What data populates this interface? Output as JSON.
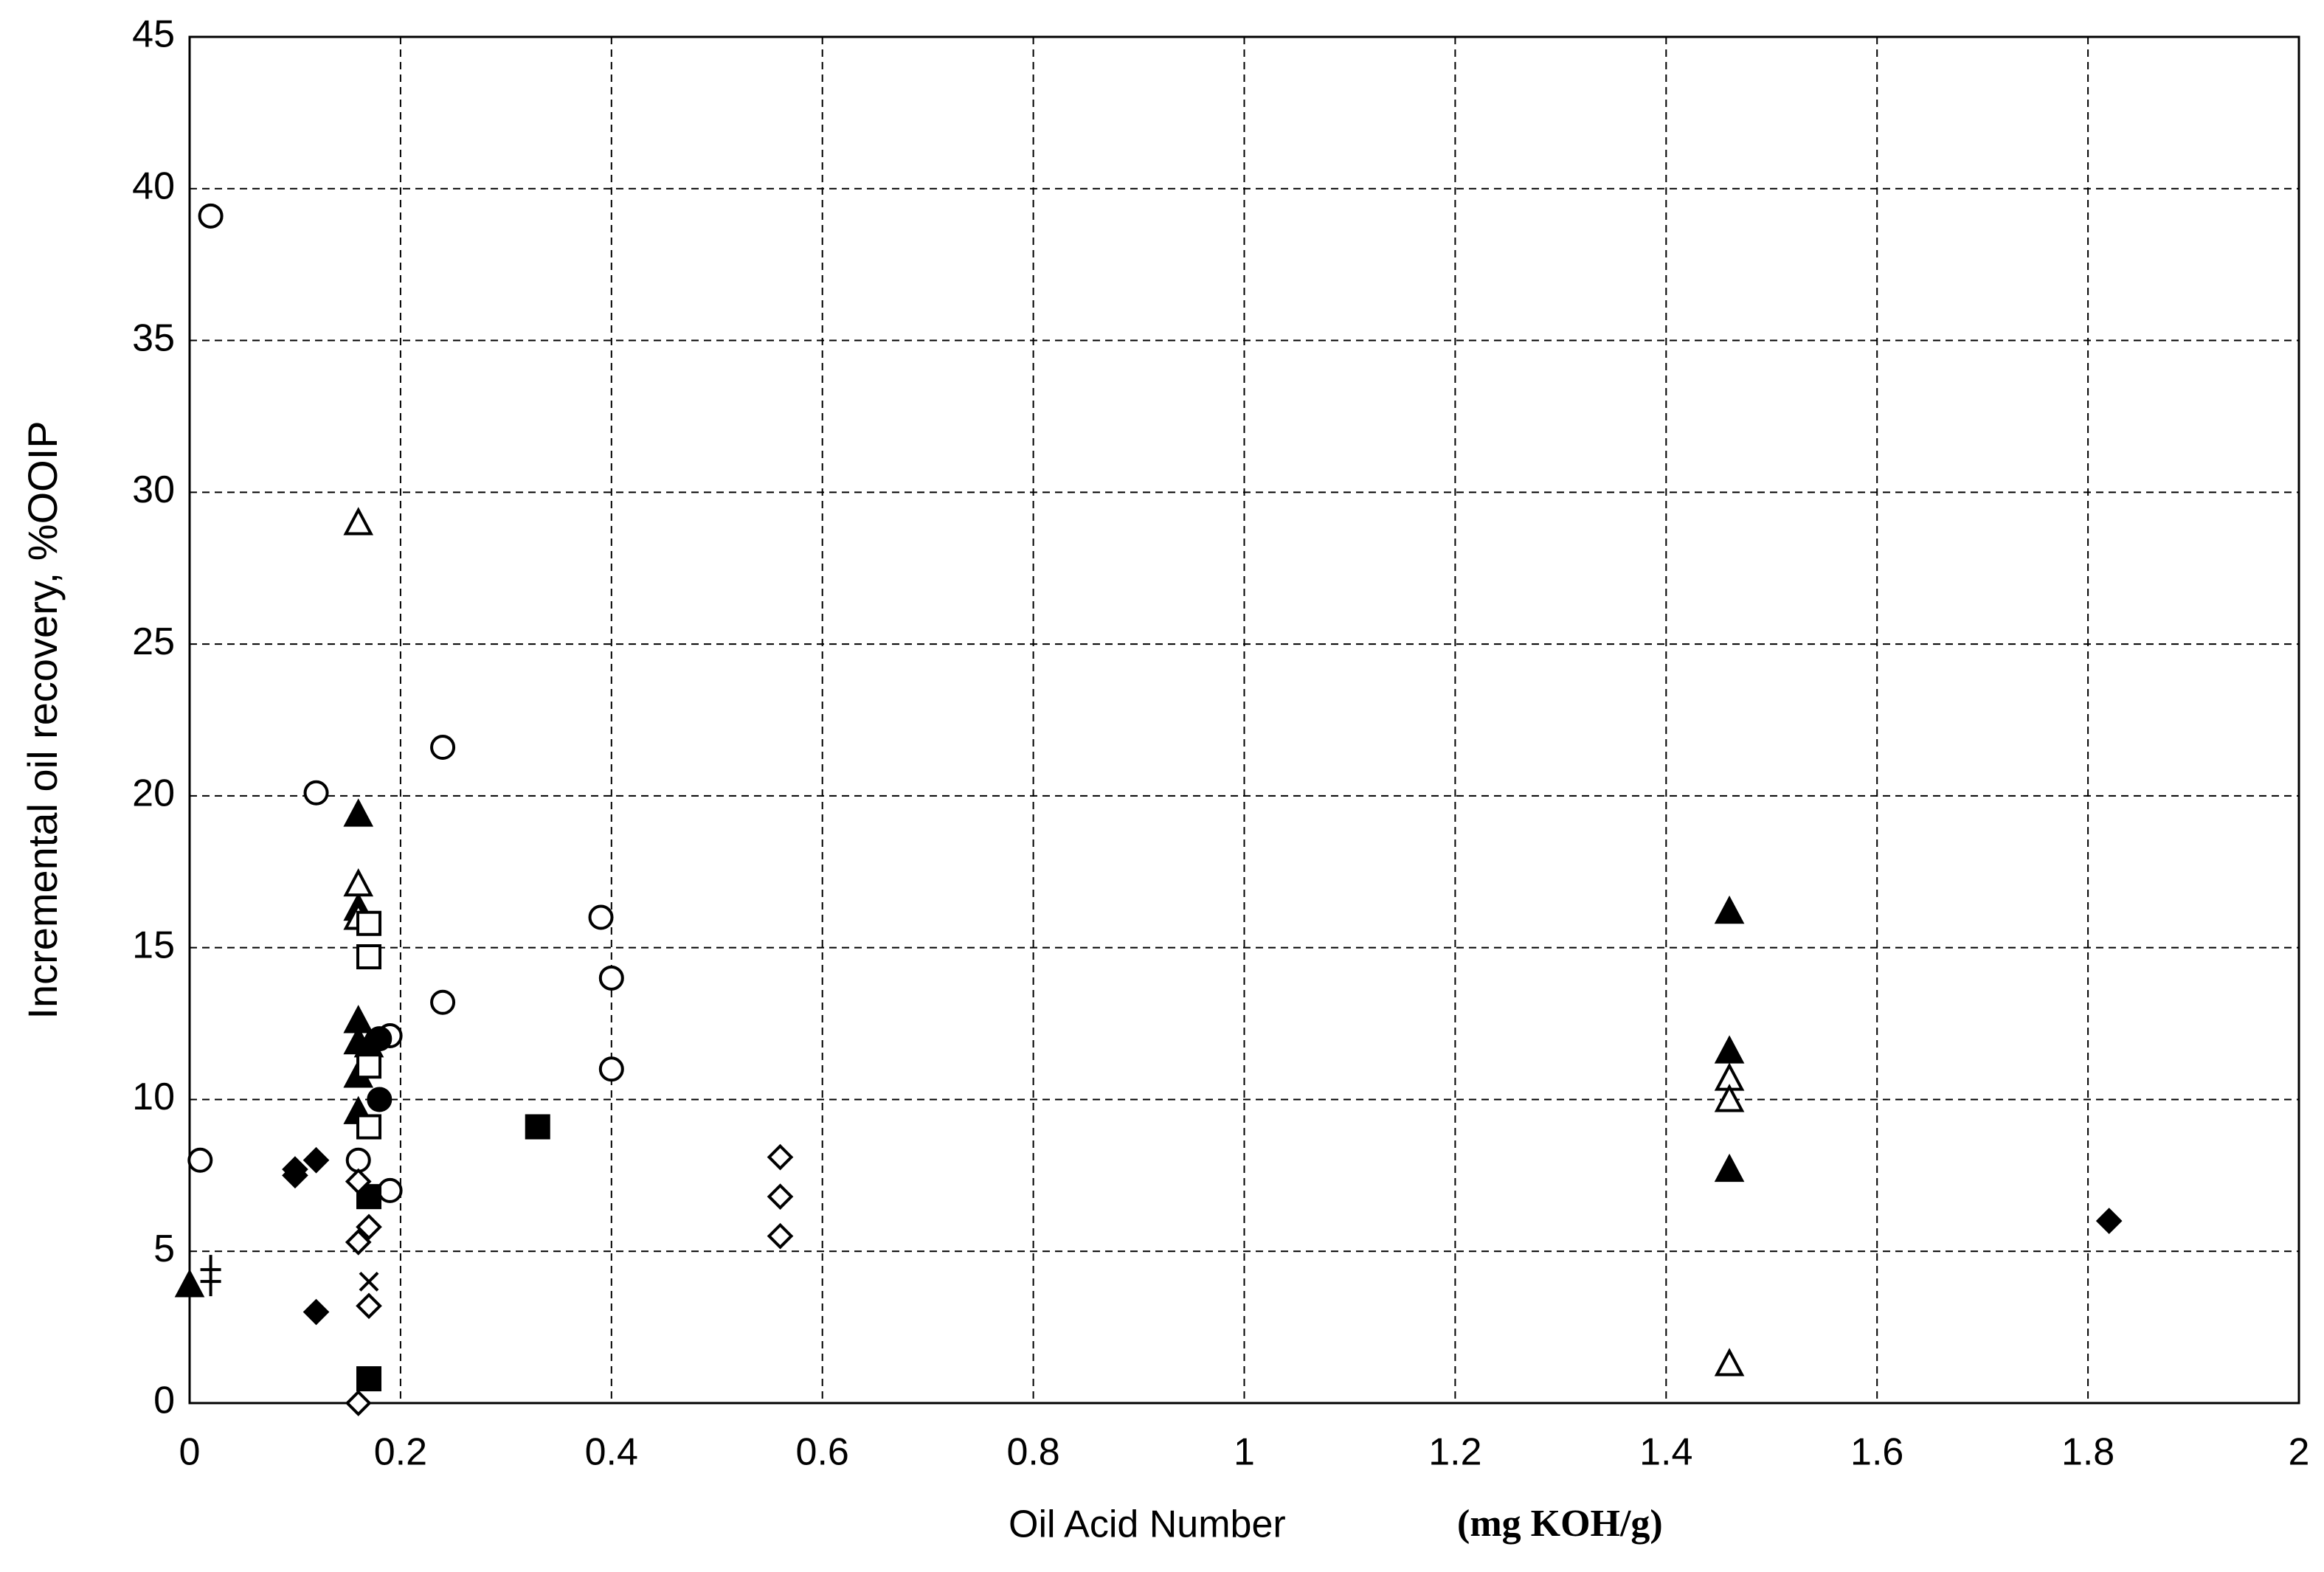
{
  "chart_data": {
    "type": "scatter",
    "x_label": "Oil Acid Number",
    "x_label_unit": "(mg KOH/g)",
    "y_label": "Incremental oil recovery, %OOIP",
    "xlim": [
      0,
      2
    ],
    "xticks": [
      0,
      0.2,
      0.4,
      0.6,
      0.8,
      1,
      1.2,
      1.4,
      1.6,
      1.8,
      2
    ],
    "ylim": [
      0,
      45
    ],
    "yticks": [
      0,
      5,
      10,
      15,
      20,
      25,
      30,
      35,
      40,
      45
    ],
    "grid": true,
    "color": "#000000",
    "series": [
      {
        "marker": "circle-open",
        "x": [
          0.02,
          0.01,
          0.12,
          0.16,
          0.19,
          0.19,
          0.24,
          0.24,
          0.39,
          0.4,
          0.4
        ],
        "values": [
          39.1,
          8,
          20.1,
          8,
          7,
          12.1,
          21.6,
          13.2,
          16,
          14,
          11
        ]
      },
      {
        "marker": "circle-filled",
        "x": [
          0.18,
          0.18
        ],
        "values": [
          10,
          12
        ]
      },
      {
        "marker": "triangle-filled",
        "x": [
          0,
          0.16,
          0.16,
          0.16,
          0.16,
          0.16,
          0.16,
          0.17,
          1.46,
          1.46,
          1.46
        ],
        "values": [
          3.9,
          19.4,
          16.3,
          12.6,
          11.9,
          10.8,
          9.6,
          11.8,
          16.2,
          11.6,
          7.7
        ]
      },
      {
        "marker": "triangle-open",
        "x": [
          0.16,
          0.16,
          0.16,
          1.46,
          1.46,
          1.46
        ],
        "values": [
          29,
          17.1,
          16,
          10.7,
          10,
          1.3
        ]
      },
      {
        "marker": "square-open",
        "x": [
          0.17,
          0.17,
          0.17,
          0.17
        ],
        "values": [
          15.8,
          14.7,
          11.1,
          9.1
        ]
      },
      {
        "marker": "square-filled",
        "x": [
          0.17,
          0.17,
          0.33
        ],
        "values": [
          6.8,
          0.8,
          9.1
        ]
      },
      {
        "marker": "diamond-filled",
        "x": [
          0.1,
          0.1,
          0.12,
          0.12,
          1.82
        ],
        "values": [
          7.5,
          7.7,
          8,
          3,
          6
        ]
      },
      {
        "marker": "diamond-open",
        "x": [
          0.16,
          0.16,
          0.17,
          0.17,
          0.16,
          0.56,
          0.56,
          0.56
        ],
        "values": [
          7.3,
          5.3,
          5.8,
          3.2,
          0,
          8.1,
          6.8,
          5.5
        ]
      },
      {
        "marker": "cross",
        "x": [
          0.17
        ],
        "values": [
          4
        ]
      },
      {
        "marker": "plus",
        "x": [
          0.02
        ],
        "values": [
          4.2
        ]
      }
    ]
  }
}
